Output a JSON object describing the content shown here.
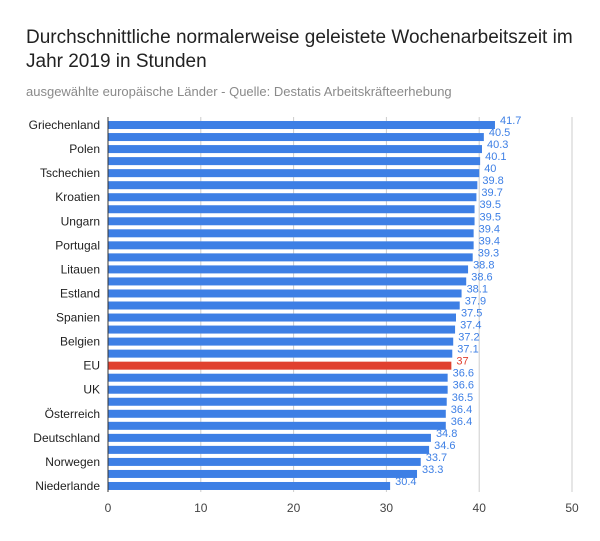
{
  "chart_data": {
    "type": "bar",
    "orientation": "horizontal",
    "title": "Durchschnittliche normalerweise geleistete Wochenarbeitszeit im Jahr 2019 in Stunden",
    "subtitle": "ausgewählte europäische Länder - Quelle: Destatis Arbeitskräfteerhebung",
    "xlabel": "",
    "ylabel": "",
    "xlim": [
      0,
      50
    ],
    "xticks": [
      0,
      10,
      20,
      30,
      40,
      50
    ],
    "grid": true,
    "categories": [
      "Griechenland",
      "",
      "Polen",
      "",
      "Tschechien",
      "",
      "Kroatien",
      "",
      "Ungarn",
      "",
      "Portugal",
      "",
      "Litauen",
      "",
      "Estland",
      "",
      "Spanien",
      "",
      "Belgien",
      "",
      "EU",
      "",
      "UK",
      "",
      "Österreich",
      "",
      "Deutschland",
      "",
      "Norwegen",
      "",
      "Niederlande"
    ],
    "values": [
      41.7,
      40.5,
      40.3,
      40.1,
      40,
      39.8,
      39.7,
      39.5,
      39.5,
      39.4,
      39.4,
      39.3,
      38.8,
      38.6,
      38.1,
      37.9,
      37.5,
      37.4,
      37.2,
      37.1,
      37,
      36.6,
      36.6,
      36.5,
      36.4,
      36.4,
      34.8,
      34.6,
      33.7,
      33.3,
      30.4
    ],
    "value_labels": [
      "41.7",
      "40.5",
      "40.3",
      "40.1",
      "40",
      "39.8",
      "39.7",
      "39.5",
      "39.5",
      "39.4",
      "39.4",
      "39.3",
      "38.8",
      "38.6",
      "38.1",
      "37.9",
      "37.5",
      "37.4",
      "37.2",
      "37.1",
      "37",
      "36.6",
      "36.6",
      "36.5",
      "36.4",
      "36.4",
      "34.8",
      "34.6",
      "33.7",
      "33.3",
      "30.4"
    ],
    "highlight_index": 20,
    "colors": {
      "bar": "#3d7fe5",
      "highlight": "#e0402f",
      "label": "#3d7fe5",
      "highlight_label": "#e0402f",
      "grid": "#cccccc",
      "axis": "#333333"
    }
  }
}
